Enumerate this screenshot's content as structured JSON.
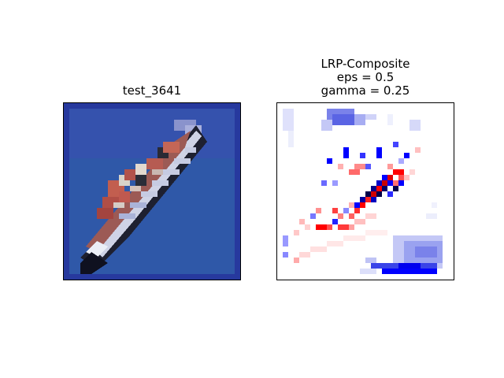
{
  "left_panel": {
    "title": "test_3641",
    "subject": "cargo ship (low-resolution image)"
  },
  "right_panel": {
    "title_lines": [
      "LRP-Composite",
      "eps = 0.5",
      "gamma = 0.25"
    ],
    "colormap": "bwr (blue = negative, white = zero, red = positive)"
  },
  "colors": {
    "background": "#ffffff",
    "frame": "#000000",
    "sea": "#2f58a8",
    "border_blue": "#27399e",
    "hull_dark": "#131526",
    "hull_white": "#dfe2ee",
    "cargo_red": "#b5574d",
    "heat_red": "#ff0000",
    "heat_blue": "#0000ff",
    "heat_navy": "#00004a"
  }
}
